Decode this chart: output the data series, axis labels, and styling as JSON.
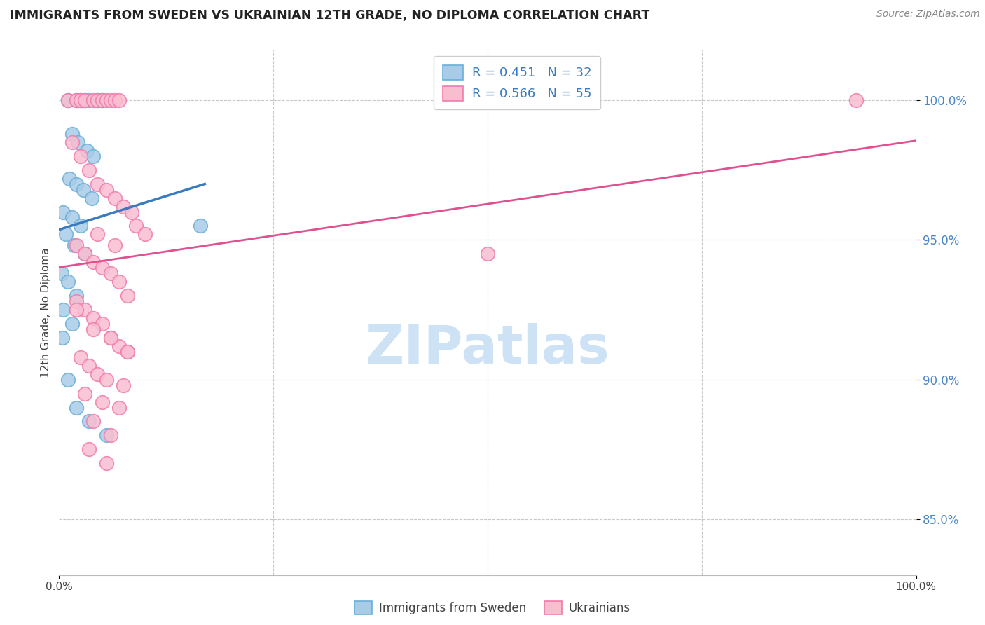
{
  "title": "IMMIGRANTS FROM SWEDEN VS UKRAINIAN 12TH GRADE, NO DIPLOMA CORRELATION CHART",
  "source": "Source: ZipAtlas.com",
  "ylabel": "12th Grade, No Diploma",
  "xlim": [
    0.0,
    100.0
  ],
  "ylim": [
    83.0,
    101.8
  ],
  "y_ticks": [
    85.0,
    90.0,
    95.0,
    100.0
  ],
  "legend_label1": "Immigrants from Sweden",
  "legend_label2": "Ukrainians",
  "legend_r1": "R = 0.451",
  "legend_n1": "N = 32",
  "legend_r2": "R = 0.566",
  "legend_n2": "N = 55",
  "blue_color": "#a8cce8",
  "blue_edge": "#6aaed6",
  "pink_color": "#f9bdd0",
  "pink_edge": "#f07aaa",
  "trendline_blue": "#3a7abf",
  "trendline_pink": "#e05090",
  "watermark": "ZIPatlas",
  "watermark_color": "#cde3f5",
  "blue_x": [
    1.0,
    2.0,
    2.5,
    3.0,
    3.5,
    4.5,
    5.0,
    1.5,
    2.2,
    3.2,
    4.0,
    1.2,
    2.0,
    2.8,
    3.8,
    0.5,
    1.5,
    2.5,
    0.8,
    1.8,
    3.0,
    0.3,
    1.0,
    2.0,
    0.5,
    1.5,
    0.4,
    16.5,
    1.0,
    2.0,
    3.5,
    5.5
  ],
  "blue_y": [
    100.0,
    100.0,
    100.0,
    100.0,
    100.0,
    100.0,
    100.0,
    98.8,
    98.5,
    98.2,
    98.0,
    97.2,
    97.0,
    96.8,
    96.5,
    96.0,
    95.8,
    95.5,
    95.2,
    94.8,
    94.5,
    93.8,
    93.5,
    93.0,
    92.5,
    92.0,
    91.5,
    95.5,
    90.0,
    89.0,
    88.5,
    88.0
  ],
  "pink_x": [
    1.0,
    2.0,
    2.5,
    3.0,
    4.0,
    4.5,
    5.0,
    5.5,
    6.0,
    6.5,
    7.0,
    1.5,
    2.5,
    3.5,
    4.5,
    5.5,
    6.5,
    7.5,
    8.5,
    9.0,
    10.0,
    2.0,
    3.0,
    4.0,
    5.0,
    6.0,
    7.0,
    8.0,
    2.0,
    3.0,
    4.0,
    5.0,
    6.0,
    7.0,
    8.0,
    2.5,
    3.5,
    4.5,
    5.5,
    7.5,
    3.0,
    5.0,
    7.0,
    4.0,
    6.0,
    3.5,
    5.5,
    2.0,
    4.0,
    6.0,
    8.0,
    4.5,
    6.5,
    93.0,
    50.0
  ],
  "pink_y": [
    100.0,
    100.0,
    100.0,
    100.0,
    100.0,
    100.0,
    100.0,
    100.0,
    100.0,
    100.0,
    100.0,
    98.5,
    98.0,
    97.5,
    97.0,
    96.8,
    96.5,
    96.2,
    96.0,
    95.5,
    95.2,
    94.8,
    94.5,
    94.2,
    94.0,
    93.8,
    93.5,
    93.0,
    92.8,
    92.5,
    92.2,
    92.0,
    91.5,
    91.2,
    91.0,
    90.8,
    90.5,
    90.2,
    90.0,
    89.8,
    89.5,
    89.2,
    89.0,
    88.5,
    88.0,
    87.5,
    87.0,
    92.5,
    91.8,
    91.5,
    91.0,
    95.2,
    94.8,
    100.0,
    94.5
  ]
}
